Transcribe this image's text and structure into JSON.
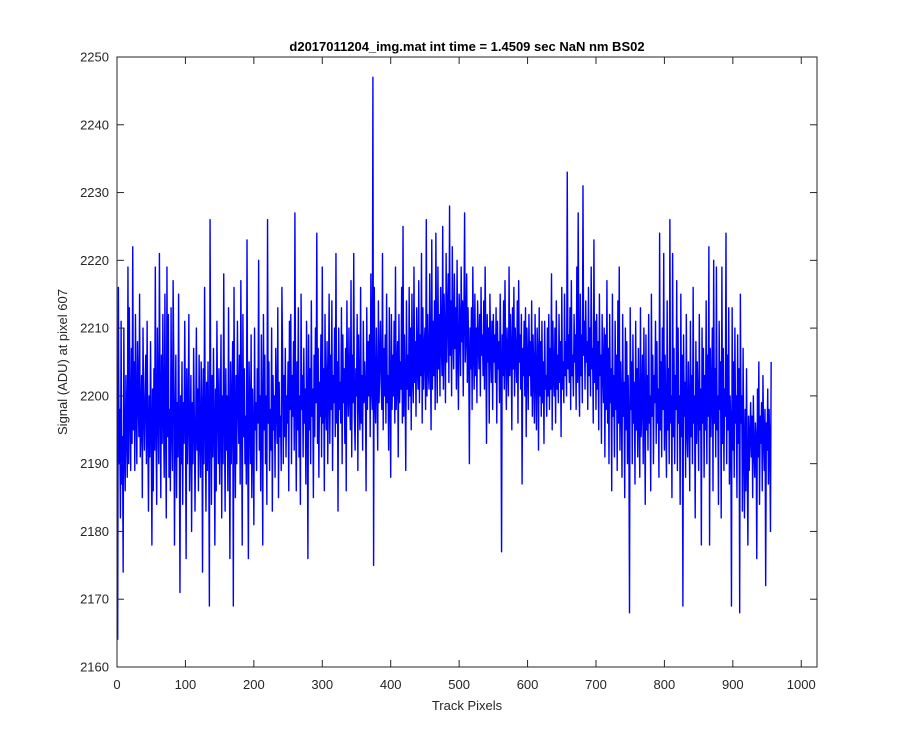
{
  "chart_data": {
    "type": "line",
    "title": "d2017011204_img.mat int time = 1.4509 sec  NaN nm BS02",
    "xlabel": "Track Pixels",
    "ylabel": "Signal (ADU) at pixel 607",
    "xlim": [
      0,
      1023
    ],
    "ylim": [
      2160,
      2250
    ],
    "x_ticks": [
      0,
      100,
      200,
      300,
      400,
      500,
      600,
      700,
      800,
      900,
      1000
    ],
    "y_ticks": [
      2160,
      2170,
      2180,
      2190,
      2200,
      2210,
      2220,
      2230,
      2240,
      2250
    ],
    "grid": false,
    "box": true,
    "line_color": "#0000ff",
    "series": [
      {
        "x_start": 1,
        "x_step": 1,
        "values": [
          2164,
          2216,
          2190,
          2198,
          2182,
          2211,
          2187,
          2194,
          2174,
          2210,
          2192,
          2186,
          2203,
          2195,
          2188,
          2219,
          2190,
          2213,
          2197,
          2189,
          2207,
          2193,
          2222,
          2195,
          2205,
          2189,
          2212,
          2198,
          2190,
          2208,
          2200,
          2194,
          2215,
          2191,
          2196,
          2203,
          2185,
          2210,
          2198,
          2192,
          2200,
          2206,
          2190,
          2211,
          2195,
          2183,
          2200,
          2191,
          2208,
          2196,
          2178,
          2201,
          2186,
          2204,
          2192,
          2219,
          2195,
          2184,
          2210,
          2198,
          2190,
          2221,
          2199,
          2185,
          2206,
          2193,
          2212,
          2197,
          2188,
          2215,
          2195,
          2182,
          2219,
          2194,
          2212,
          2188,
          2198,
          2186,
          2213,
          2195,
          2189,
          2217,
          2205,
          2178,
          2197,
          2206,
          2185,
          2199,
          2191,
          2215,
          2196,
          2171,
          2200,
          2190,
          2205,
          2184,
          2199,
          2193,
          2211,
          2198,
          2176,
          2204,
          2190,
          2197,
          2212,
          2186,
          2194,
          2203,
          2180,
          2199,
          2190,
          2207,
          2197,
          2183,
          2195,
          2210,
          2192,
          2201,
          2186,
          2206,
          2194,
          2188,
          2205,
          2198,
          2174,
          2204,
          2190,
          2216,
          2196,
          2183,
          2202,
          2189,
          2205,
          2194,
          2169,
          2226,
          2199,
          2184,
          2203,
          2191,
          2207,
          2196,
          2178,
          2201,
          2186,
          2211,
          2198,
          2190,
          2204,
          2187,
          2196,
          2209,
          2182,
          2200,
          2190,
          2218,
          2197,
          2183,
          2204,
          2192,
          2200,
          2186,
          2213,
          2195,
          2176,
          2205,
          2190,
          2199,
          2208,
          2169,
          2216,
          2196,
          2185,
          2203,
          2190,
          2211,
          2199,
          2193,
          2206,
          2187,
          2217,
          2198,
          2178,
          2212,
          2194,
          2204,
          2190,
          2197,
          2187,
          2223,
          2194,
          2176,
          2205,
          2198,
          2190,
          2209,
          2185,
          2201,
          2194,
          2181,
          2210,
          2195,
          2199,
          2189,
          2204,
          2196,
          2220,
          2192,
          2200,
          2186,
          2209,
          2197,
          2178,
          2212,
          2195,
          2206,
          2190,
          2200,
          2184,
          2226,
          2196,
          2205,
          2189,
          2198,
          2192,
          2210,
          2183,
          2203,
          2195,
          2200,
          2188,
          2207,
          2199,
          2193,
          2213,
          2185,
          2202,
          2194,
          2197,
          2189,
          2216,
          2206,
          2190,
          2203,
          2194,
          2207,
          2191,
          2200,
          2196,
          2205,
          2186,
          2211,
          2198,
          2212,
          2190,
          2203,
          2197,
          2208,
          2192,
          2227,
          2199,
          2186,
          2205,
          2195,
          2213,
          2191,
          2200,
          2184,
          2215,
          2198,
          2203,
          2191,
          2207,
          2196,
          2201,
          2187,
          2211,
          2199,
          2176,
          2209,
          2195,
          2204,
          2190,
          2214,
          2197,
          2201,
          2185,
          2206,
          2194,
          2210,
          2199,
          2224,
          2193,
          2207,
          2188,
          2202,
          2197,
          2209,
          2191,
          2219,
          2196,
          2204,
          2186,
          2212,
          2199,
          2195,
          2208,
          2190,
          2201,
          2215,
          2193,
          2206,
          2198,
          2214,
          2189,
          2203,
          2199,
          2210,
          2194,
          2221,
          2196,
          2205,
          2183,
          2210,
          2198,
          2202,
          2196,
          2213,
          2190,
          2209,
          2199,
          2204,
          2193,
          2207,
          2186,
          2214,
          2201,
          2197,
          2210,
          2200,
          2195,
          2217,
          2191,
          2206,
          2199,
          2221,
          2197,
          2192,
          2204,
          2200,
          2212,
          2189,
          2209,
          2200,
          2195,
          2216,
          2196,
          2203,
          2192,
          2211,
          2199,
          2205,
          2201,
          2186,
          2213,
          2198,
          2208,
          2200,
          2209,
          2194,
          2218,
          2201,
          2198,
          2247,
          2175,
          2216,
          2200,
          2196,
          2210,
          2202,
          2192,
          2214,
          2199,
          2205,
          2211,
          2202,
          2198,
          2221,
          2195,
          2207,
          2200,
          2209,
          2196,
          2215,
          2199,
          2203,
          2192,
          2213,
          2201,
          2188,
          2212,
          2198,
          2206,
          2200,
          2211,
          2196,
          2219,
          2198,
          2203,
          2208,
          2191,
          2212,
          2199,
          2205,
          2201,
          2216,
          2196,
          2225,
          2197,
          2209,
          2202,
          2189,
          2214,
          2201,
          2206,
          2198,
          2216,
          2200,
          2210,
          2195,
          2215,
          2203,
          2199,
          2219,
          2202,
          2208,
          2197,
          2213,
          2204,
          2201,
          2217,
          2199,
          2209,
          2203,
          2221,
          2196,
          2213,
          2201,
          2207,
          2210,
          2198,
          2226,
          2200,
          2212,
          2204,
          2201,
          2218,
          2206,
          2195,
          2223,
          2201,
          2211,
          2203,
          2214,
          2198,
          2224,
          2207,
          2199,
          2219,
          2204,
          2212,
          2200,
          2216,
          2208,
          2203,
          2225,
          2201,
          2215,
          2209,
          2199,
          2221,
          2205,
          2212,
          2218,
          2202,
          2228,
          2206,
          2214,
          2200,
          2222,
          2209,
          2204,
          2218,
          2207,
          2213,
          2201,
          2220,
          2206,
          2198,
          2215,
          2211,
          2203,
          2219,
          2208,
          2214,
          2200,
          2212,
          2227,
          2205,
          2209,
          2218,
          2202,
          2213,
          2206,
          2190,
          2210,
          2204,
          2213,
          2198,
          2219,
          2207,
          2201,
          2215,
          2203,
          2210,
          2199,
          2214,
          2208,
          2204,
          2212,
          2200,
          2216,
          2206,
          2209,
          2203,
          2214,
          2201,
          2219,
          2208,
          2193,
          2212,
          2205,
          2210,
          2196,
          2215,
          2207,
          2202,
          2211,
          2198,
          2212,
          2205,
          2209,
          2202,
          2213,
          2196,
          2211,
          2204,
          2208,
          2199,
          2215,
          2205,
          2177,
          2209,
          2203,
          2214,
          2201,
          2217,
          2206,
          2198,
          2210,
          2205,
          2200,
          2219,
          2203,
          2212,
          2207,
          2195,
          2213,
          2204,
          2216,
          2200,
          2210,
          2206,
          2202,
          2214,
          2196,
          2217,
          2205,
          2209,
          2201,
          2212,
          2187,
          2207,
          2203,
          2211,
          2200,
          2213,
          2194,
          2210,
          2205,
          2198,
          2212,
          2203,
          2208,
          2200,
          2214,
          2197,
          2209,
          2204,
          2196,
          2212,
          2203,
          2195,
          2210,
          2206,
          2192,
          2213,
          2200,
          2208,
          2197,
          2211,
          2199,
          2205,
          2193,
          2211,
          2201,
          2203,
          2197,
          2210,
          2200,
          2212,
          2198,
          2207,
          2201,
          2218,
          2195,
          2211,
          2203,
          2200,
          2210,
          2196,
          2214,
          2201,
          2206,
          2199,
          2212,
          2202,
          2208,
          2194,
          2216,
          2201,
          2205,
          2199,
          2215,
          2203,
          2208,
          2200,
          2233,
          2204,
          2209,
          2202,
          2213,
          2198,
          2217,
          2203,
          2206,
          2200,
          2212,
          2205,
          2209,
          2198,
          2219,
          2202,
          2227,
          2204,
          2197,
          2215,
          2203,
          2209,
          2199,
          2231,
          2206,
          2211,
          2201,
          2214,
          2205,
          2208,
          2198,
          2216,
          2203,
          2210,
          2200,
          2219,
          2204,
          2207,
          2196,
          2223,
          2202,
          2211,
          2198,
          2212,
          2201,
          2208,
          2195,
          2215,
          2203,
          2206,
          2193,
          2212,
          2204,
          2199,
          2210,
          2191,
          2209,
          2198,
          2217,
          2196,
          2207,
          2190,
          2212,
          2199,
          2204,
          2186,
          2215,
          2197,
          2203,
          2191,
          2211,
          2198,
          2206,
          2189,
          2214,
          2196,
          2219,
          2192,
          2205,
          2199,
          2188,
          2212,
          2197,
          2202,
          2185,
          2210,
          2195,
          2208,
          2190,
          2203,
          2196,
          2168,
          2213,
          2198,
          2205,
          2190,
          2209,
          2196,
          2202,
          2187,
          2211,
          2195,
          2204,
          2191,
          2207,
          2197,
          2188,
          2213,
          2194,
          2199,
          2206,
          2190,
          2210,
          2198,
          2184,
          2209,
          2195,
          2203,
          2192,
          2212,
          2196,
          2200,
          2186,
          2215,
          2197,
          2206,
          2190,
          2203,
          2199,
          2211,
          2193,
          2208,
          2196,
          2201,
          2188,
          2224,
          2195,
          2205,
          2191,
          2210,
          2198,
          2221,
          2192,
          2206,
          2197,
          2188,
          2214,
          2195,
          2204,
          2190,
          2226,
          2196,
          2200,
          2185,
          2221,
          2194,
          2207,
          2190,
          2203,
          2198,
          2217,
          2189,
          2210,
          2196,
          2200,
          2184,
          2215,
          2194,
          2206,
          2169,
          2209,
          2197,
          2202,
          2188,
          2212,
          2195,
          2191,
          2205,
          2198,
          2186,
          2211,
          2194,
          2203,
          2190,
          2216,
          2196,
          2200,
          2182,
          2208,
          2193,
          2205,
          2199,
          2189,
          2212,
          2195,
          2201,
          2178,
          2210,
          2196,
          2207,
          2188,
          2203,
          2195,
          2214,
          2190,
          2206,
          2197,
          2222,
          2178,
          2207,
          2194,
          2201,
          2210,
          2186,
          2220,
          2196,
          2204,
          2191,
          2219,
          2195,
          2200,
          2184,
          2211,
          2198,
          2205,
          2182,
          2219,
          2193,
          2207,
          2189,
          2201,
          2197,
          2224,
          2190,
          2206,
          2195,
          2213,
          2187,
          2200,
          2196,
          2169,
          2213,
          2192,
          2205,
          2188,
          2210,
          2196,
          2200,
          2185,
          2209,
          2193,
          2204,
          2168,
          2215,
          2196,
          2200,
          2183,
          2207,
          2192,
          2182,
          2198,
          2186,
          2204,
          2190,
          2178,
          2197,
          2189,
          2194,
          2199,
          2191,
          2197,
          2185,
          2200,
          2192,
          2188,
          2196,
          2194,
          2176,
          2201,
          2191,
          2205,
          2184,
          2197,
          2193,
          2199,
          2186,
          2203,
          2194,
          2189,
          2198,
          2172,
          2196,
          2192,
          2201,
          2187,
          2198,
          2193,
          2180,
          2205
        ]
      }
    ]
  }
}
